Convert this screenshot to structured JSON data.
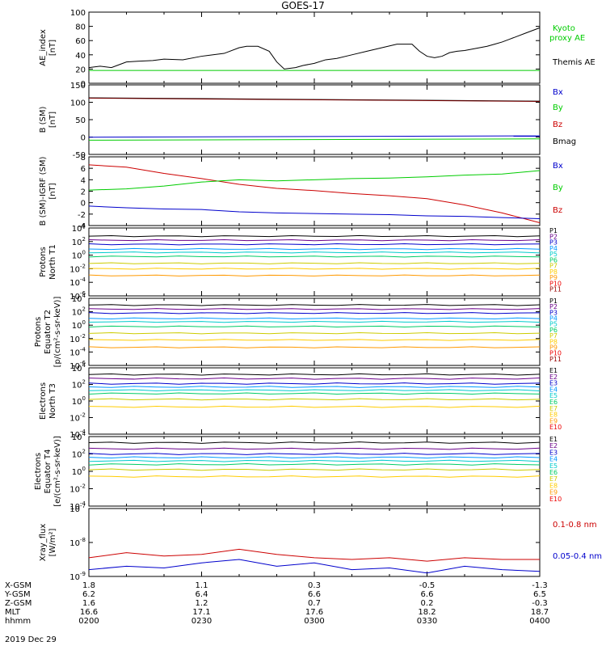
{
  "title": "GOES-17",
  "date_label": "2019 Dec 29",
  "colors": {
    "black": "#000000",
    "green": "#00cc00",
    "red": "#cc0000",
    "blue": "#0000cc",
    "darkred": "#7a0000",
    "channels": [
      "#000000",
      "#6a008a",
      "#0000cc",
      "#0099ff",
      "#00cccc",
      "#00cc66",
      "#cccc00",
      "#ffcc00",
      "#ff9900",
      "#ee0000",
      "#990000"
    ]
  },
  "time_axis": {
    "tick_times": [
      "0200",
      "0230",
      "0300",
      "0330",
      "0400"
    ],
    "row_labels": [
      "X-GSM",
      "Y-GSM",
      "Z-GSM",
      "MLT",
      "hhmm"
    ],
    "rows": [
      [
        "1.8",
        "1.1",
        "0.3",
        "-0.5",
        "-1.3"
      ],
      [
        "6.2",
        "6.4",
        "6.6",
        "6.6",
        "6.5"
      ],
      [
        "1.6",
        "1.2",
        "0.7",
        "0.2",
        "-0.3"
      ],
      [
        "16.6",
        "17.1",
        "17.6",
        "18.2",
        "18.7"
      ],
      [
        "0200",
        "0230",
        "0300",
        "0330",
        "0400"
      ]
    ]
  },
  "chart_data": [
    {
      "type": "line",
      "id": "ae",
      "ylabel": "AE_index\n[nT]",
      "ylim": [
        0,
        100
      ],
      "yticks": [
        "0",
        "20",
        "40",
        "60",
        "80",
        "100"
      ],
      "legend": [
        "Kyoto",
        "proxy AE",
        "Themis AE"
      ],
      "series": [
        {
          "name": "Themis AE",
          "color": "black",
          "x": [
            0,
            3,
            6,
            8,
            10,
            13,
            17,
            20,
            25,
            30,
            36,
            40,
            42,
            45,
            48,
            50,
            52,
            55,
            57,
            60,
            63,
            66,
            70,
            74,
            78,
            82,
            86,
            88,
            90,
            92,
            94,
            96,
            98,
            100,
            102,
            104,
            106,
            108,
            110,
            112,
            114,
            116,
            118,
            120
          ],
          "y": [
            22,
            24,
            22,
            26,
            30,
            31,
            32,
            34,
            33,
            38,
            42,
            50,
            52,
            52,
            45,
            30,
            20,
            22,
            25,
            28,
            33,
            35,
            40,
            45,
            50,
            55,
            55,
            45,
            38,
            36,
            38,
            43,
            45,
            46,
            48,
            50,
            52,
            55,
            58,
            62,
            66,
            70,
            74,
            78
          ]
        },
        {
          "name": "Kyoto",
          "color": "green",
          "x": [
            0,
            120
          ],
          "y": [
            18,
            18
          ]
        }
      ]
    },
    {
      "type": "line",
      "id": "bsm",
      "ylabel": "B (SM)\n[nT]",
      "ylim": [
        -60,
        150
      ],
      "yticks": [
        "-50",
        "0",
        "50",
        "100",
        "150"
      ],
      "legend": [
        "Bx",
        "By",
        "Bz",
        "Bmag"
      ],
      "series": [
        {
          "name": "Bmag",
          "color": "black",
          "x": [
            0,
            120
          ],
          "y": [
            111,
            101
          ]
        },
        {
          "name": "Bz",
          "color": "darkred",
          "x": [
            0,
            120
          ],
          "y": [
            110,
            100
          ]
        },
        {
          "name": "Bx",
          "color": "blue",
          "x": [
            0,
            120
          ],
          "y": [
            -8,
            -4
          ]
        },
        {
          "name": "By",
          "color": "green",
          "x": [
            0,
            120
          ],
          "y": [
            -17,
            -13
          ]
        }
      ]
    },
    {
      "type": "line",
      "id": "bigrf",
      "ylabel": "B (SM)-IGRF (SM)\n[nT]",
      "ylim": [
        -4,
        8
      ],
      "yticks": [
        "-4",
        "-2",
        "0",
        "2",
        "4",
        "6",
        "8"
      ],
      "legend": [
        "Bx",
        "By",
        "Bz"
      ],
      "series": [
        {
          "name": "Bz",
          "color": "red",
          "x": [
            0,
            10,
            20,
            30,
            40,
            50,
            60,
            70,
            80,
            90,
            100,
            110,
            120
          ],
          "y": [
            6.6,
            6.2,
            5.1,
            4.2,
            3.2,
            2.5,
            2.1,
            1.6,
            1.2,
            0.7,
            -0.4,
            -1.8,
            -3.5
          ]
        },
        {
          "name": "By",
          "color": "green",
          "x": [
            0,
            10,
            20,
            30,
            40,
            50,
            60,
            70,
            80,
            90,
            100,
            110,
            120
          ],
          "y": [
            2.2,
            2.4,
            2.9,
            3.6,
            4.0,
            3.8,
            4.0,
            4.2,
            4.3,
            4.5,
            4.8,
            5.0,
            5.6
          ]
        },
        {
          "name": "Bx",
          "color": "blue",
          "x": [
            0,
            10,
            20,
            30,
            40,
            50,
            60,
            70,
            80,
            90,
            100,
            110,
            120
          ],
          "y": [
            -0.6,
            -0.9,
            -1.1,
            -1.2,
            -1.6,
            -1.8,
            -1.9,
            -2.0,
            -2.1,
            -2.3,
            -2.4,
            -2.6,
            -2.8
          ]
        }
      ]
    },
    {
      "type": "line",
      "id": "pn",
      "ylabel": "Protons\nNorth T1",
      "log": true,
      "ylim": [
        -6,
        4
      ],
      "yticks": [
        "10^-6",
        "10^-4",
        "10^-2",
        "10^0",
        "10^2",
        "10^4"
      ],
      "legend": [
        "P1",
        "P2",
        "P3",
        "P4",
        "P5",
        "P6",
        "P7",
        "P8",
        "P9",
        "P10",
        "P11"
      ],
      "levels": [
        2.8,
        2.2,
        1.6,
        0.9,
        0.4,
        -0.2,
        -1.2,
        -2.0,
        -3.0
      ]
    },
    {
      "type": "line",
      "id": "pe",
      "ylabel": "Protons\nEquator T2\n[p/(cm²-s-sr-keV)]",
      "log": true,
      "ylim": [
        -6,
        4
      ],
      "yticks": [
        "10^-6",
        "10^-4",
        "10^-2",
        "10^0",
        "10^2",
        "10^4"
      ],
      "legend": [
        "P1",
        "P2",
        "P3",
        "P4",
        "P5",
        "P6",
        "P7",
        "P8",
        "P9",
        "P10",
        "P11"
      ],
      "levels": [
        3.0,
        2.4,
        1.8,
        1.0,
        0.5,
        -0.2,
        -1.2,
        -2.2,
        -3.3
      ]
    },
    {
      "type": "line",
      "id": "en",
      "ylabel": "Electrons\nNorth T3",
      "log": true,
      "ylim": [
        -4,
        4
      ],
      "yticks": [
        "10^-4",
        "10^-2",
        "10^0",
        "10^2",
        "10^4"
      ],
      "legend": [
        "E1",
        "E2",
        "E3",
        "E4",
        "E5",
        "E6",
        "E7",
        "E8",
        "E9",
        "E10"
      ],
      "levels": [
        3.2,
        2.7,
        2.1,
        1.7,
        1.3,
        0.9,
        0.2,
        -0.7
      ]
    },
    {
      "type": "line",
      "id": "ee",
      "ylabel": "Electrons\nEquator T4\n[e/(cm²-s-sr-keV)]",
      "log": true,
      "ylim": [
        -4,
        4
      ],
      "yticks": [
        "10^-4",
        "10^-2",
        "10^0",
        "10^2",
        "10^4"
      ],
      "legend": [
        "E1",
        "E2",
        "E3",
        "E4",
        "E5",
        "E6",
        "E7",
        "E8",
        "E9",
        "E10"
      ],
      "levels": [
        3.3,
        2.6,
        2.0,
        1.6,
        1.2,
        0.8,
        0.2,
        -0.6
      ]
    },
    {
      "type": "line",
      "id": "xray",
      "ylabel": "Xray_flux\n[W/m²]",
      "log": true,
      "ylim": [
        -9,
        -7
      ],
      "yticks": [
        "10^-9",
        "10^-8",
        "10^-7"
      ],
      "legend": [
        "0.1-0.8 nm",
        "0.05-0.4 nm"
      ],
      "series": [
        {
          "name": "0.1-0.8 nm",
          "color": "red",
          "x": [
            0,
            10,
            20,
            30,
            40,
            50,
            60,
            70,
            80,
            90,
            100,
            110,
            120
          ],
          "y": [
            -8.45,
            -8.3,
            -8.4,
            -8.35,
            -8.2,
            -8.35,
            -8.45,
            -8.5,
            -8.45,
            -8.55,
            -8.45,
            -8.5,
            -8.5
          ]
        },
        {
          "name": "0.05-0.4 nm",
          "color": "blue",
          "x": [
            0,
            10,
            20,
            30,
            40,
            50,
            60,
            70,
            80,
            90,
            100,
            110,
            120
          ],
          "y": [
            -8.8,
            -8.7,
            -8.75,
            -8.6,
            -8.5,
            -8.7,
            -8.6,
            -8.8,
            -8.75,
            -8.9,
            -8.7,
            -8.8,
            -8.85
          ]
        }
      ]
    }
  ]
}
